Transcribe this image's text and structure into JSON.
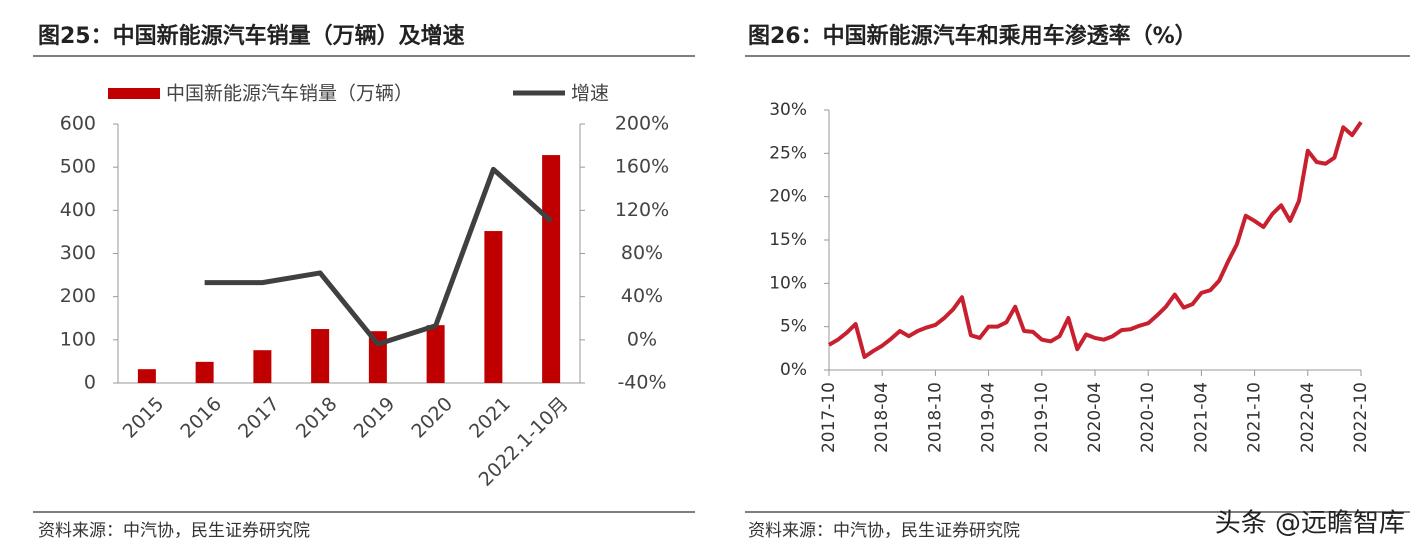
{
  "chart_data": [
    {
      "type": "bar-line",
      "title": "图25：中国新能源汽车销量（万辆）及增速",
      "categories": [
        "2015",
        "2016",
        "2017",
        "2018",
        "2019",
        "2020",
        "2021",
        "2022.1-10月"
      ],
      "series": [
        {
          "name": "中国新能源汽车销量（万辆）",
          "type": "bar",
          "color": "#c00000",
          "values": [
            32,
            49,
            76,
            125,
            120,
            134,
            352,
            528
          ]
        },
        {
          "name": "增速",
          "type": "line",
          "axis": "y2",
          "color": "#404040",
          "values": [
            null,
            53,
            53,
            62,
            -4,
            13,
            158,
            110
          ]
        }
      ],
      "ylim": [
        0,
        600
      ],
      "yticks": [
        0,
        100,
        200,
        300,
        400,
        500,
        600
      ],
      "y2lim": [
        -40,
        200
      ],
      "y2ticks": [
        {
          "value": -40,
          "label": "-40%"
        },
        {
          "value": 0,
          "label": "0%"
        },
        {
          "value": 40,
          "label": "40%"
        },
        {
          "value": 80,
          "label": "80%"
        },
        {
          "value": 120,
          "label": "120%"
        },
        {
          "value": 160,
          "label": "160%"
        },
        {
          "value": 200,
          "label": "200%"
        }
      ],
      "source": "资料来源：中汽协，民生证券研究院"
    },
    {
      "type": "line",
      "title": "图26：中国新能源汽车和乘用车渗透率（%）",
      "x": [
        "2017-10",
        "2017-11",
        "2017-12",
        "2018-01",
        "2018-02",
        "2018-03",
        "2018-04",
        "2018-05",
        "2018-06",
        "2018-07",
        "2018-08",
        "2018-09",
        "2018-10",
        "2018-11",
        "2018-12",
        "2019-01",
        "2019-02",
        "2019-03",
        "2019-04",
        "2019-05",
        "2019-06",
        "2019-07",
        "2019-08",
        "2019-09",
        "2019-10",
        "2019-11",
        "2019-12",
        "2020-01",
        "2020-02",
        "2020-03",
        "2020-04",
        "2020-05",
        "2020-06",
        "2020-07",
        "2020-08",
        "2020-09",
        "2020-10",
        "2020-11",
        "2020-12",
        "2021-01",
        "2021-02",
        "2021-03",
        "2021-04",
        "2021-05",
        "2021-06",
        "2021-07",
        "2021-08",
        "2021-09",
        "2021-10",
        "2021-11",
        "2021-12",
        "2022-01",
        "2022-02",
        "2022-03",
        "2022-04",
        "2022-05",
        "2022-06",
        "2022-07",
        "2022-08",
        "2022-09",
        "2022-10"
      ],
      "values": [
        2.9,
        3.5,
        4.3,
        5.3,
        1.5,
        2.2,
        2.8,
        3.6,
        4.5,
        3.9,
        4.5,
        4.9,
        5.2,
        6.0,
        7.0,
        8.4,
        4.0,
        3.7,
        5.0,
        5.0,
        5.5,
        7.3,
        4.5,
        4.4,
        3.5,
        3.3,
        3.9,
        6.0,
        2.4,
        4.1,
        3.7,
        3.5,
        3.9,
        4.6,
        4.7,
        5.1,
        5.4,
        6.3,
        7.3,
        8.7,
        7.2,
        7.6,
        8.9,
        9.2,
        10.3,
        12.5,
        14.5,
        17.8,
        17.2,
        16.5,
        18.0,
        19.0,
        17.2,
        19.5,
        25.3,
        24.0,
        23.8,
        24.5,
        28.0,
        27.1,
        28.6
      ],
      "color": "#c8202f",
      "xticks": [
        "2017-10",
        "2018-04",
        "2018-10",
        "2019-04",
        "2019-10",
        "2020-04",
        "2020-10",
        "2021-04",
        "2021-10",
        "2022-04",
        "2022-10"
      ],
      "ylim": [
        0,
        30
      ],
      "yticks": [
        {
          "value": 0,
          "label": "0%"
        },
        {
          "value": 5,
          "label": "5%"
        },
        {
          "value": 10,
          "label": "10%"
        },
        {
          "value": 15,
          "label": "15%"
        },
        {
          "value": 20,
          "label": "20%"
        },
        {
          "value": 25,
          "label": "25%"
        },
        {
          "value": 30,
          "label": "30%"
        }
      ],
      "source": "资料来源：中汽协，民生证券研究院"
    }
  ],
  "watermark": "头条 @远瞻智库"
}
